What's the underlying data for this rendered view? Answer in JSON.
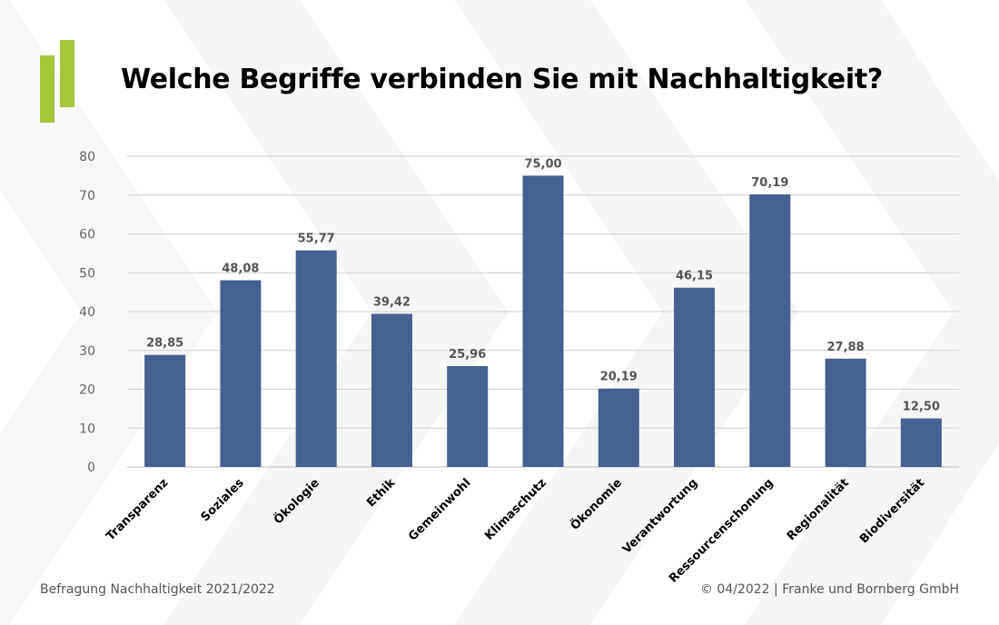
{
  "title": "Welche Begriffe verbinden Sie mit Nachhaltigkeit?",
  "footer": {
    "source": "Befragung Nachhaltigkeit 2021/2022",
    "copyright": "© 04/2022 | Franke und Bornberg GmbH"
  },
  "colors": {
    "bar": "#456191",
    "logo": "#a4c639",
    "grid": "#d0d0d0",
    "label": "#555555"
  },
  "chart_data": {
    "type": "bar",
    "title": "Welche Begriffe verbinden Sie mit Nachhaltigkeit?",
    "xlabel": "",
    "ylabel": "",
    "ylim": [
      0,
      80
    ],
    "yticks": [
      "0",
      "10",
      "20",
      "30",
      "40",
      "50",
      "60",
      "70",
      "80"
    ],
    "grid": true,
    "categories": [
      "Transparenz",
      "Soziales",
      "Ökologie",
      "Ethik",
      "Gemeinwohl",
      "Klimaschutz",
      "Ökonomie",
      "Verantwortung",
      "Ressourcenschonung",
      "Regionalität",
      "Biodiversität"
    ],
    "values": [
      28.85,
      48.08,
      55.77,
      39.42,
      25.96,
      75.0,
      20.19,
      46.15,
      70.19,
      27.88,
      12.5
    ],
    "value_labels": [
      "28,85",
      "48,08",
      "55,77",
      "39,42",
      "25,96",
      "75,00",
      "20,19",
      "46,15",
      "70,19",
      "27,88",
      "12,50"
    ]
  }
}
